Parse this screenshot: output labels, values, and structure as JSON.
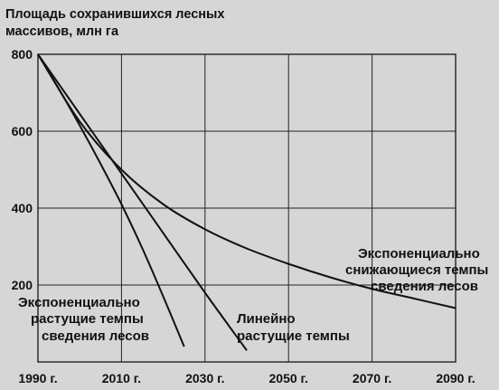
{
  "chart_data": {
    "type": "line",
    "title": "",
    "ylabel": [
      "Площадь сохранившихся лесных",
      "массивов, млн га"
    ],
    "xlabel": "",
    "xlim": [
      1990,
      2090
    ],
    "ylim": [
      0,
      800
    ],
    "x_ticks": [
      1990,
      2010,
      2030,
      2050,
      2070,
      2090
    ],
    "x_tick_labels": [
      "1990 г.",
      "2010 г.",
      "2030 г.",
      "2050 г.",
      "2070 г.",
      "2090 г."
    ],
    "y_ticks": [
      200,
      400,
      600,
      800
    ],
    "y_tick_labels": [
      "200",
      "400",
      "600",
      "800"
    ],
    "grid": true,
    "series": [
      {
        "x": [
          1990,
          1995,
          2000,
          2005,
          2010,
          2015,
          2020,
          2025
        ],
        "y": [
          800,
          710,
          615,
          515,
          410,
          295,
          170,
          40
        ]
      },
      {
        "x": [
          1990,
          2000,
          2010,
          2020,
          2030,
          2040
        ],
        "y": [
          800,
          645,
          490,
          335,
          180,
          30
        ]
      },
      {
        "x": [
          1990,
          2000,
          2010,
          2020,
          2030,
          2040,
          2050,
          2060,
          2070,
          2080,
          2090
        ],
        "y": [
          800,
          625,
          500,
          410,
          345,
          295,
          255,
          220,
          190,
          165,
          140
        ]
      }
    ],
    "annotations": [
      {
        "lines": [
          "Экспоненциально",
          "растущие темпы",
          "сведения лесов"
        ]
      },
      {
        "lines": [
          "Линейно",
          "растущие темпы"
        ]
      },
      {
        "lines": [
          "Экспоненциально",
          "снижающиеся темпы",
          "сведения лесов"
        ]
      }
    ]
  }
}
